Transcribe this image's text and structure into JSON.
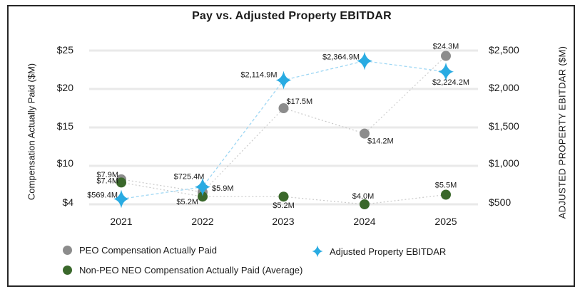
{
  "title": "Pay vs. Adjusted Property EBITDAR",
  "axes": {
    "left": {
      "title": "Compensation Actually Paid ($M)",
      "ticks": [
        "$25",
        "$20",
        "$15",
        "$10",
        "$4"
      ]
    },
    "right": {
      "title": "ADJUSTED PROPERTY EBITDAR ($M)",
      "ticks": [
        "$2,500",
        "$2,000",
        "$1,500",
        "$1,000",
        "$500"
      ]
    },
    "x": {
      "ticks": [
        "2021",
        "2022",
        "2023",
        "2024",
        "2025"
      ]
    }
  },
  "legend": {
    "peo": "PEO Compensation Actually Paid",
    "non_peo": "Non-PEO NEO Compensation Actually Paid (Average)",
    "ebitdar": "Adjusted Property EBITDAR"
  },
  "colors": {
    "peo": "#8c8c8c",
    "non_peo": "#3a682b",
    "ebitdar": "#29abe2",
    "ebitdar_line": "#9ed7f4",
    "comp_line": "#c9c9c9",
    "gridline": "#e9e9e9",
    "text": "#1a1a1a"
  },
  "chart_data": {
    "type": "line",
    "categories": [
      "2021",
      "2022",
      "2023",
      "2024",
      "2025"
    ],
    "series": [
      {
        "name": "PEO Compensation Actually Paid",
        "axis": "left",
        "marker": "circle",
        "color_key": "peo",
        "values": [
          7.9,
          5.9,
          17.5,
          14.2,
          24.3
        ],
        "labels": [
          "$7.9M",
          "$5.9M",
          "$17.5M",
          "$14.2M",
          "$24.3M"
        ]
      },
      {
        "name": "Non-PEO NEO Compensation Actually Paid (Average)",
        "axis": "left",
        "marker": "circle",
        "color_key": "non_peo",
        "values": [
          7.4,
          5.2,
          5.2,
          4.0,
          5.5
        ],
        "labels": [
          "$7.4M",
          "$5.2M",
          "$5.2M",
          "$4.0M",
          "$5.5M"
        ]
      },
      {
        "name": "Adjusted Property EBITDAR",
        "axis": "right",
        "marker": "star",
        "color_key": "ebitdar",
        "values": [
          569.4,
          725.4,
          2114.9,
          2364.9,
          2224.2
        ],
        "labels": [
          "$569.4M",
          "$725.4M",
          "$2,114.9M",
          "$2,364.9M",
          "$2,224.2M"
        ]
      }
    ],
    "left_tick_values": [
      25,
      20,
      15,
      10,
      4
    ],
    "right_tick_values": [
      2500,
      2000,
      1500,
      1000,
      500
    ],
    "xlabel": "",
    "left_ylabel": "Compensation Actually Paid ($M)",
    "right_ylabel": "ADJUSTED PROPERTY EBITDAR ($M)",
    "grid": true,
    "legend_position": "bottom"
  }
}
